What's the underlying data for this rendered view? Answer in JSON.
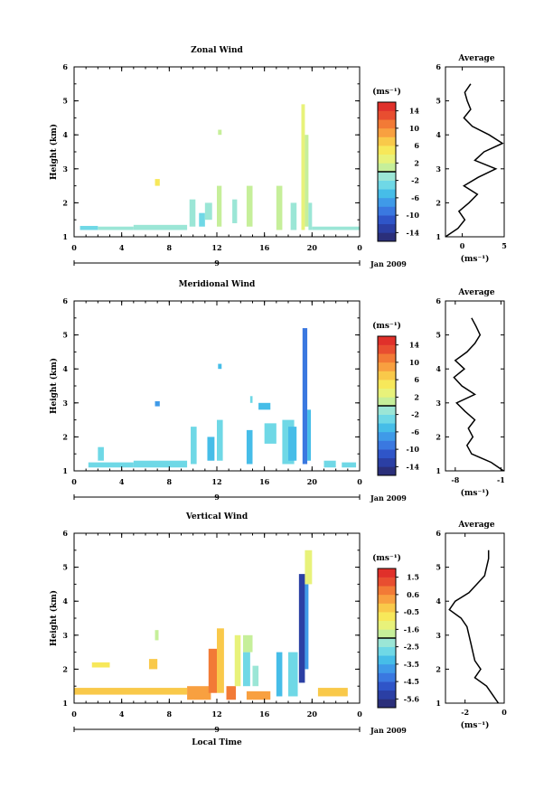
{
  "chart_data": [
    {
      "type": "heatmap",
      "title": "Zonal Wind",
      "ylabel": "Height (km)",
      "xlim": [
        0,
        24
      ],
      "ylim": [
        1,
        6
      ],
      "x_ticks": [
        "0",
        "4",
        "8",
        "12",
        "16",
        "20",
        "0"
      ],
      "y_ticks": [
        "1",
        "2",
        "3",
        "4",
        "5",
        "6"
      ],
      "day_label": "9",
      "date_label": "Jan 2009",
      "colorbar": {
        "unit_label": "(ms⁻¹)",
        "ticks": [
          "14",
          "10",
          "6",
          "2",
          "-2",
          "-6",
          "-10",
          "-14"
        ],
        "range": [
          -16,
          16
        ]
      },
      "patches": [
        {
          "x": [
            0.5,
            2.0
          ],
          "y": [
            1.2,
            1.32
          ],
          "v": -3
        },
        {
          "x": [
            2.0,
            5.0
          ],
          "y": [
            1.2,
            1.3
          ],
          "v": -2
        },
        {
          "x": [
            5.0,
            9.5
          ],
          "y": [
            1.2,
            1.35
          ],
          "v": -2
        },
        {
          "x": [
            6.8,
            7.2
          ],
          "y": [
            2.5,
            2.7
          ],
          "v": 5
        },
        {
          "x": [
            9.7,
            10.2
          ],
          "y": [
            1.3,
            2.1
          ],
          "v": -1
        },
        {
          "x": [
            10.5,
            11.0
          ],
          "y": [
            1.3,
            1.7
          ],
          "v": -3
        },
        {
          "x": [
            11.0,
            11.6
          ],
          "y": [
            1.5,
            2.0
          ],
          "v": -1
        },
        {
          "x": [
            12.0,
            12.4
          ],
          "y": [
            1.3,
            2.5
          ],
          "v": 0
        },
        {
          "x": [
            12.1,
            12.4
          ],
          "y": [
            4.0,
            4.15
          ],
          "v": 1
        },
        {
          "x": [
            13.3,
            13.7
          ],
          "y": [
            1.4,
            2.1
          ],
          "v": -2
        },
        {
          "x": [
            14.5,
            15.0
          ],
          "y": [
            1.3,
            2.5
          ],
          "v": 1
        },
        {
          "x": [
            17.0,
            17.5
          ],
          "y": [
            1.2,
            2.5
          ],
          "v": 0
        },
        {
          "x": [
            18.2,
            18.7
          ],
          "y": [
            1.2,
            2.0
          ],
          "v": -2
        },
        {
          "x": [
            19.1,
            19.4
          ],
          "y": [
            1.2,
            4.9
          ],
          "v": 3
        },
        {
          "x": [
            19.4,
            19.7
          ],
          "y": [
            1.3,
            4.0
          ],
          "v": 1
        },
        {
          "x": [
            19.7,
            20.0
          ],
          "y": [
            1.2,
            2.0
          ],
          "v": -1
        },
        {
          "x": [
            20.0,
            24.0
          ],
          "y": [
            1.2,
            1.3
          ],
          "v": -2
        }
      ],
      "profile": {
        "title": "Average",
        "xlim": [
          -2,
          5
        ],
        "x_ticks": [
          "0",
          "5"
        ],
        "tick_values": [
          0,
          5
        ],
        "x_unit": "(ms⁻¹)",
        "height": [
          1.0,
          1.25,
          1.5,
          1.75,
          2.0,
          2.25,
          2.5,
          2.75,
          3.0,
          3.25,
          3.5,
          3.75,
          4.0,
          4.25,
          4.5,
          4.75,
          5.0,
          5.25,
          5.5
        ],
        "values": [
          -2,
          -0.5,
          0.3,
          -0.4,
          0.8,
          1.8,
          0.2,
          1.9,
          4.0,
          1.5,
          2.6,
          4.8,
          3.2,
          1.2,
          0.2,
          1.0,
          0.6,
          0.3,
          1.0
        ]
      }
    },
    {
      "type": "heatmap",
      "title": "Meridional Wind",
      "ylabel": "Height (km)",
      "xlim": [
        0,
        24
      ],
      "ylim": [
        1,
        6
      ],
      "x_ticks": [
        "0",
        "4",
        "8",
        "12",
        "16",
        "20",
        "0"
      ],
      "y_ticks": [
        "1",
        "2",
        "3",
        "4",
        "5",
        "6"
      ],
      "day_label": "9",
      "date_label": "Jan 2009",
      "colorbar": {
        "unit_label": "(ms⁻¹)",
        "ticks": [
          "14",
          "10",
          "6",
          "2",
          "-2",
          "-6",
          "-10",
          "-14"
        ],
        "range": [
          -16,
          16
        ]
      },
      "patches": [
        {
          "x": [
            1.2,
            5.0
          ],
          "y": [
            1.1,
            1.25
          ],
          "v": -3
        },
        {
          "x": [
            2.0,
            2.5
          ],
          "y": [
            1.3,
            1.7
          ],
          "v": -4
        },
        {
          "x": [
            5.0,
            9.5
          ],
          "y": [
            1.1,
            1.3
          ],
          "v": -3
        },
        {
          "x": [
            6.8,
            7.2
          ],
          "y": [
            2.9,
            3.05
          ],
          "v": -8
        },
        {
          "x": [
            9.8,
            10.3
          ],
          "y": [
            1.2,
            2.3
          ],
          "v": -4
        },
        {
          "x": [
            11.2,
            11.8
          ],
          "y": [
            1.3,
            2.0
          ],
          "v": -6
        },
        {
          "x": [
            12.0,
            12.5
          ],
          "y": [
            1.3,
            2.5
          ],
          "v": -4
        },
        {
          "x": [
            12.1,
            12.4
          ],
          "y": [
            4.0,
            4.15
          ],
          "v": -6
        },
        {
          "x": [
            14.5,
            15.0
          ],
          "y": [
            1.2,
            2.2
          ],
          "v": -6
        },
        {
          "x": [
            14.8,
            15.0
          ],
          "y": [
            3.0,
            3.2
          ],
          "v": -4
        },
        {
          "x": [
            15.5,
            16.5
          ],
          "y": [
            2.8,
            3.0
          ],
          "v": -5
        },
        {
          "x": [
            16.0,
            17.0
          ],
          "y": [
            1.8,
            2.4
          ],
          "v": -4
        },
        {
          "x": [
            17.5,
            18.5
          ],
          "y": [
            1.2,
            2.5
          ],
          "v": -3
        },
        {
          "x": [
            18.0,
            18.7
          ],
          "y": [
            1.3,
            2.3
          ],
          "v": -5
        },
        {
          "x": [
            19.2,
            19.6
          ],
          "y": [
            1.2,
            5.2
          ],
          "v": -9
        },
        {
          "x": [
            19.6,
            19.9
          ],
          "y": [
            1.3,
            2.8
          ],
          "v": -6
        },
        {
          "x": [
            21.0,
            22.0
          ],
          "y": [
            1.1,
            1.3
          ],
          "v": -4
        },
        {
          "x": [
            22.5,
            23.7
          ],
          "y": [
            1.1,
            1.25
          ],
          "v": -3
        }
      ],
      "profile": {
        "title": "Average",
        "xlim": [
          -9.5,
          -0.5
        ],
        "x_ticks": [
          "-8",
          "-1"
        ],
        "tick_values": [
          -8,
          -1
        ],
        "x_unit": "(ms⁻¹)",
        "height": [
          1.0,
          1.25,
          1.5,
          1.75,
          2.0,
          2.25,
          2.5,
          2.75,
          3.0,
          3.25,
          3.5,
          3.75,
          4.0,
          4.25,
          4.5,
          4.75,
          5.0,
          5.25,
          5.5
        ],
        "values": [
          -0.6,
          -2.5,
          -5.5,
          -6.2,
          -5.3,
          -6.0,
          -5.0,
          -6.5,
          -7.8,
          -5.0,
          -7.0,
          -8.2,
          -6.6,
          -8.0,
          -6.2,
          -5.0,
          -4.2,
          -4.8,
          -5.5
        ]
      }
    },
    {
      "type": "heatmap",
      "title": "Vertical Wind",
      "ylabel": "Height (km)",
      "xlim": [
        0,
        24
      ],
      "ylim": [
        1,
        6
      ],
      "x_ticks": [
        "0",
        "4",
        "8",
        "12",
        "16",
        "20",
        "0"
      ],
      "y_ticks": [
        "1",
        "2",
        "3",
        "4",
        "5",
        "6"
      ],
      "day_label": "9",
      "date_label": "Jan 2009",
      "xlabel": "Local Time",
      "colorbar": {
        "unit_label": "(ms⁻¹)",
        "ticks": [
          "1.5",
          "0.6",
          "-0.5",
          "-1.6",
          "-2.5",
          "-3.5",
          "-4.5",
          "-5.6"
        ],
        "range": [
          -6.2,
          2.1
        ]
      },
      "patches": [
        {
          "x": [
            0.0,
            9.5
          ],
          "y": [
            1.25,
            1.45
          ],
          "v": -0.2
        },
        {
          "x": [
            1.5,
            3.0
          ],
          "y": [
            2.05,
            2.2
          ],
          "v": -0.5
        },
        {
          "x": [
            6.3,
            7.0
          ],
          "y": [
            2.0,
            2.3
          ],
          "v": -0.3
        },
        {
          "x": [
            6.8,
            7.1
          ],
          "y": [
            2.85,
            3.15
          ],
          "v": -1.8
        },
        {
          "x": [
            9.5,
            11.5
          ],
          "y": [
            1.1,
            1.5
          ],
          "v": 0.3
        },
        {
          "x": [
            11.3,
            12.0
          ],
          "y": [
            1.3,
            2.6
          ],
          "v": 0.6
        },
        {
          "x": [
            12.0,
            12.6
          ],
          "y": [
            1.3,
            3.2
          ],
          "v": -0.2
        },
        {
          "x": [
            12.8,
            13.6
          ],
          "y": [
            1.1,
            1.5
          ],
          "v": 0.8
        },
        {
          "x": [
            13.5,
            14.0
          ],
          "y": [
            1.5,
            3.0
          ],
          "v": -1.2
        },
        {
          "x": [
            14.2,
            14.8
          ],
          "y": [
            1.5,
            2.5
          ],
          "v": -3.0
        },
        {
          "x": [
            14.2,
            15.0
          ],
          "y": [
            2.5,
            3.0
          ],
          "v": -2.0
        },
        {
          "x": [
            14.5,
            16.5
          ],
          "y": [
            1.1,
            1.35
          ],
          "v": 0.3
        },
        {
          "x": [
            15.0,
            15.5
          ],
          "y": [
            1.5,
            2.1
          ],
          "v": -2.5
        },
        {
          "x": [
            17.0,
            17.5
          ],
          "y": [
            1.2,
            2.5
          ],
          "v": -3.5
        },
        {
          "x": [
            18.0,
            18.8
          ],
          "y": [
            1.2,
            2.5
          ],
          "v": -2.8
        },
        {
          "x": [
            18.9,
            19.4
          ],
          "y": [
            1.6,
            4.8
          ],
          "v": -5.5
        },
        {
          "x": [
            19.4,
            19.7
          ],
          "y": [
            2.0,
            4.5
          ],
          "v": -4.0
        },
        {
          "x": [
            19.4,
            20.0
          ],
          "y": [
            4.5,
            5.5
          ],
          "v": -1.5
        },
        {
          "x": [
            20.5,
            23.0
          ],
          "y": [
            1.2,
            1.45
          ],
          "v": -0.2
        }
      ],
      "profile": {
        "title": "Average",
        "xlim": [
          -3,
          0
        ],
        "x_ticks": [
          "-2",
          "0"
        ],
        "tick_values": [
          -2,
          0
        ],
        "x_unit": "(ms⁻¹)",
        "height": [
          1.0,
          1.25,
          1.5,
          1.75,
          2.0,
          2.25,
          2.5,
          2.75,
          3.0,
          3.25,
          3.5,
          3.75,
          4.0,
          4.25,
          4.5,
          4.75,
          5.0,
          5.25,
          5.5
        ],
        "values": [
          -0.3,
          -0.6,
          -0.9,
          -1.5,
          -1.2,
          -1.5,
          -1.6,
          -1.7,
          -1.8,
          -1.9,
          -2.2,
          -2.8,
          -2.5,
          -1.8,
          -1.4,
          -1.0,
          -0.9,
          -0.8,
          -0.8
        ]
      }
    }
  ]
}
